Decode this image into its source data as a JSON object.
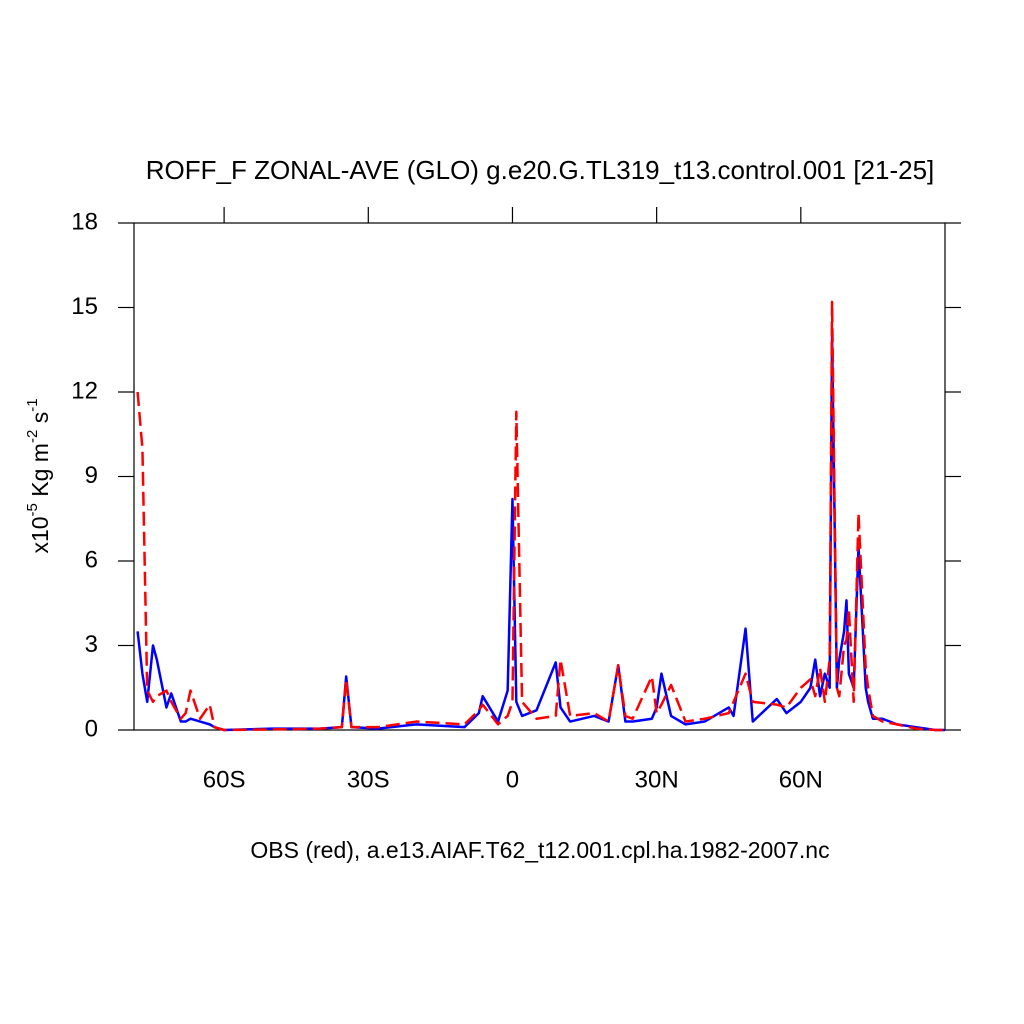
{
  "chart_data": {
    "type": "line",
    "title": "ROFF_F ZONAL-AVE (GLO) g.e20.G.TL319_t13.control.001 [21-25]",
    "xlabel": "OBS (red), a.e13.AIAF.T62_t12.001.cpl.ha.1982-2007.nc",
    "ylabel": [
      "x10",
      "-5",
      " Kg m",
      "-2",
      " s",
      "-1"
    ],
    "xlim": [
      -78.75,
      90
    ],
    "ylim": [
      0,
      18
    ],
    "xticks": [
      {
        "value": -60,
        "label": "60S"
      },
      {
        "value": -30,
        "label": "30S"
      },
      0,
      {
        "value": 30,
        "label": "30N"
      },
      {
        "value": 60,
        "label": "60N"
      }
    ],
    "yticks": [
      0,
      3,
      6,
      9,
      12,
      15,
      18
    ],
    "x": [
      -78,
      -77,
      -76,
      -74.8,
      -74,
      -72,
      -71,
      -69,
      -68,
      -67,
      -65,
      -63,
      -62,
      -60,
      -50,
      -40,
      -35.5,
      -34.6,
      -33.5,
      -28,
      -20,
      -10,
      -7,
      -6.2,
      -3,
      -1,
      0,
      0.8,
      2,
      5,
      9,
      10,
      12,
      17,
      20,
      22,
      23.5,
      25,
      29,
      30,
      31,
      33,
      36,
      40,
      45,
      46,
      48.5,
      50,
      55,
      57,
      60,
      62,
      63,
      64,
      65,
      66,
      66.5,
      67.5,
      68,
      69,
      69.5,
      70,
      71,
      72,
      73.5,
      74,
      75,
      77,
      80,
      84,
      88,
      90
    ],
    "series": [
      {
        "color": "#0000ff",
        "dashed": false,
        "values": [
          3.5,
          2.0,
          1.0,
          3.0,
          2.5,
          0.8,
          1.3,
          0.3,
          0.3,
          0.4,
          0.3,
          0.2,
          0.1,
          0,
          0.05,
          0.05,
          0.1,
          1.9,
          0.1,
          0.05,
          0.2,
          0.1,
          0.6,
          1.2,
          0.3,
          1.4,
          8.2,
          1.0,
          0.5,
          0.7,
          2.4,
          0.8,
          0.3,
          0.5,
          0.3,
          2.3,
          0.3,
          0.3,
          0.4,
          0.8,
          2.0,
          0.5,
          0.2,
          0.3,
          0.8,
          0.5,
          3.6,
          0.3,
          1.1,
          0.6,
          1.0,
          1.5,
          2.5,
          1.2,
          2.0,
          1.5,
          14.0,
          1.5,
          2.5,
          3.5,
          4.6,
          2.0,
          1.5,
          6.5,
          1.5,
          1.0,
          0.4,
          0.4,
          0.2,
          0.1,
          0,
          0
        ]
      },
      {
        "color": "#ff0000",
        "dashed": true,
        "values": [
          12.0,
          10.0,
          1.4,
          1.0,
          1.2,
          1.4,
          1.0,
          0.4,
          0.6,
          1.4,
          0.4,
          0.9,
          0.1,
          0,
          0.02,
          0.05,
          0.1,
          1.8,
          0.1,
          0.1,
          0.3,
          0.2,
          0.7,
          0.9,
          0.2,
          0.5,
          1.0,
          11.3,
          1.0,
          0.4,
          0.5,
          2.5,
          0.5,
          0.6,
          0.3,
          2.3,
          0.5,
          0.4,
          1.9,
          0.6,
          0.9,
          1.6,
          0.3,
          0.4,
          0.6,
          1.0,
          2.0,
          1.0,
          0.9,
          0.8,
          1.5,
          1.8,
          1.2,
          2.2,
          1.0,
          2.5,
          15.2,
          1.5,
          1.2,
          3.0,
          3.2,
          4.3,
          1.0,
          7.7,
          2.2,
          1.5,
          0.5,
          0.3,
          0.2,
          0.05,
          0,
          0
        ]
      }
    ]
  }
}
